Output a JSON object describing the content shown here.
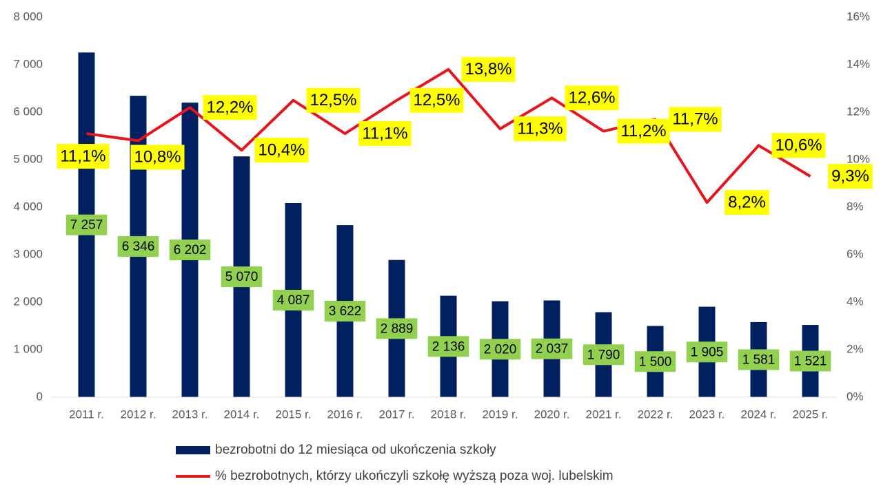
{
  "chart_data": {
    "type": "bar-line",
    "categories": [
      "2011 r.",
      "2012 r.",
      "2013 r.",
      "2014 r.",
      "2015 r.",
      "2016 r.",
      "2017 r.",
      "2018 r.",
      "2019 r.",
      "2020 r.",
      "2021 r.",
      "2022 r.",
      "2023 r.",
      "2024 r.",
      "2025 r."
    ],
    "series": [
      {
        "name": "bezrobotni do 12 miesiąca od ukończenia szkoły",
        "type": "bar",
        "color": "#002060",
        "label_color": "#92d050",
        "values": [
          7257,
          6346,
          6202,
          5070,
          4087,
          3622,
          2889,
          2136,
          2020,
          2037,
          1790,
          1500,
          1905,
          1581,
          1521
        ],
        "value_labels": [
          "7 257",
          "6 346",
          "6 202",
          "5 070",
          "4 087",
          "3 622",
          "2 889",
          "2 136",
          "2 020",
          "2 037",
          "1 790",
          "1 500",
          "1 905",
          "1 581",
          "1 521"
        ]
      },
      {
        "name": "% bezrobotnych, którzy ukończyli szkołę wyższą poza woj. lubelskim",
        "type": "line",
        "axis": "y2",
        "color": "#e8141c",
        "label_color": "#ffff00",
        "values": [
          11.1,
          10.8,
          12.2,
          10.4,
          12.5,
          11.1,
          12.5,
          13.8,
          11.3,
          12.6,
          11.2,
          11.7,
          8.2,
          10.6,
          9.3
        ],
        "value_labels": [
          "11,1%",
          "10,8%",
          "12,2%",
          "10,4%",
          "12,5%",
          "11,1%",
          "12,5%",
          "13,8%",
          "11,3%",
          "12,6%",
          "11,2%",
          "11,7%",
          "8,2%",
          "10,6%",
          "9,3%"
        ]
      }
    ],
    "ylim": [
      0,
      8000
    ],
    "yticks": [
      0,
      {
        "value": 1000,
        "label": "1 000"
      },
      {
        "value": 2000,
        "label": "2 000"
      },
      {
        "value": 3000,
        "label": "3 000"
      },
      {
        "value": 4000,
        "label": "4 000"
      },
      {
        "value": 5000,
        "label": "5 000"
      },
      {
        "value": 6000,
        "label": "6 000"
      },
      {
        "value": 7000,
        "label": "7 000"
      },
      {
        "value": 8000,
        "label": "8 000"
      }
    ],
    "y2lim": [
      0,
      16
    ],
    "y2ticks": [
      {
        "value": 0,
        "label": "0%"
      },
      {
        "value": 2,
        "label": "2%"
      },
      {
        "value": 4,
        "label": "4%"
      },
      {
        "value": 6,
        "label": "6%"
      },
      {
        "value": 8,
        "label": "8%"
      },
      {
        "value": 10,
        "label": "10%"
      },
      {
        "value": 12,
        "label": "12%"
      },
      {
        "value": 14,
        "label": "14%"
      },
      {
        "value": 16,
        "label": "16%"
      }
    ],
    "grid": false
  }
}
